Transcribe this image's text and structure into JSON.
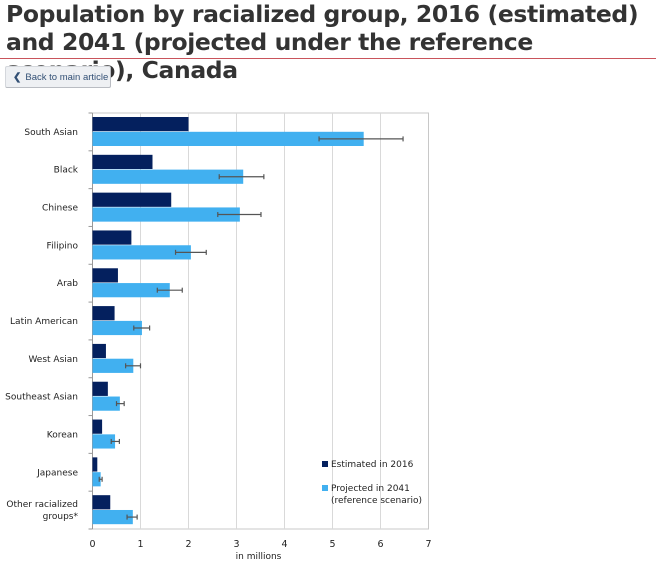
{
  "page": {
    "title": "Population by racialized group, 2016 (estimated) and 2041 (projected under the reference scenario), Canada",
    "back_button": {
      "label": "Back to main article",
      "icon": "chevron-left-icon"
    }
  },
  "colors": {
    "estimated_2016": "#04205e",
    "projected_2041": "#41b0f0",
    "error_bar": "#555555",
    "gridline": "#d9d9d9",
    "title_rule": "#c9535b"
  },
  "chart_data": {
    "type": "bar",
    "orientation": "horizontal",
    "title": "Population by racialized group, 2016 (estimated) and 2041 (projected under the reference scenario), Canada",
    "xlabel": "in millions",
    "ylabel": "",
    "xlim": [
      0,
      7
    ],
    "xticks": [
      "0",
      "1",
      "2",
      "3",
      "4",
      "5",
      "6",
      "7"
    ],
    "grid": true,
    "legend_position": "bottom-right (inside plot)",
    "categories": [
      "South Asian",
      "Black",
      "Chinese",
      "Filipino",
      "Arab",
      "Latin American",
      "West Asian",
      "Southeast Asian",
      "Korean",
      "Japanese",
      "Other racialized groups*"
    ],
    "category_label_lines": [
      [
        "South Asian"
      ],
      [
        "Black"
      ],
      [
        "Chinese"
      ],
      [
        "Filipino"
      ],
      [
        "Arab"
      ],
      [
        "Latin American"
      ],
      [
        "West Asian"
      ],
      [
        "Southeast Asian"
      ],
      [
        "Korean"
      ],
      [
        "Japanese"
      ],
      [
        "Other racialized",
        "groups*"
      ]
    ],
    "series": [
      {
        "name": "Estimated in 2016",
        "legend_lines": [
          "Estimated in 2016"
        ],
        "values": [
          2.0,
          1.25,
          1.64,
          0.81,
          0.53,
          0.46,
          0.28,
          0.32,
          0.2,
          0.1,
          0.37
        ]
      },
      {
        "name": "Projected in 2041 (reference scenario)",
        "legend_lines": [
          "Projected in 2041",
          "(reference scenario)"
        ],
        "values": [
          5.65,
          3.14,
          3.07,
          2.05,
          1.61,
          1.03,
          0.85,
          0.57,
          0.47,
          0.17,
          0.84
        ],
        "error_low": [
          4.72,
          2.64,
          2.61,
          1.73,
          1.35,
          0.86,
          0.69,
          0.5,
          0.39,
          0.14,
          0.72
        ],
        "error_high": [
          6.47,
          3.57,
          3.51,
          2.37,
          1.87,
          1.19,
          1.0,
          0.66,
          0.56,
          0.2,
          0.93
        ]
      }
    ]
  }
}
